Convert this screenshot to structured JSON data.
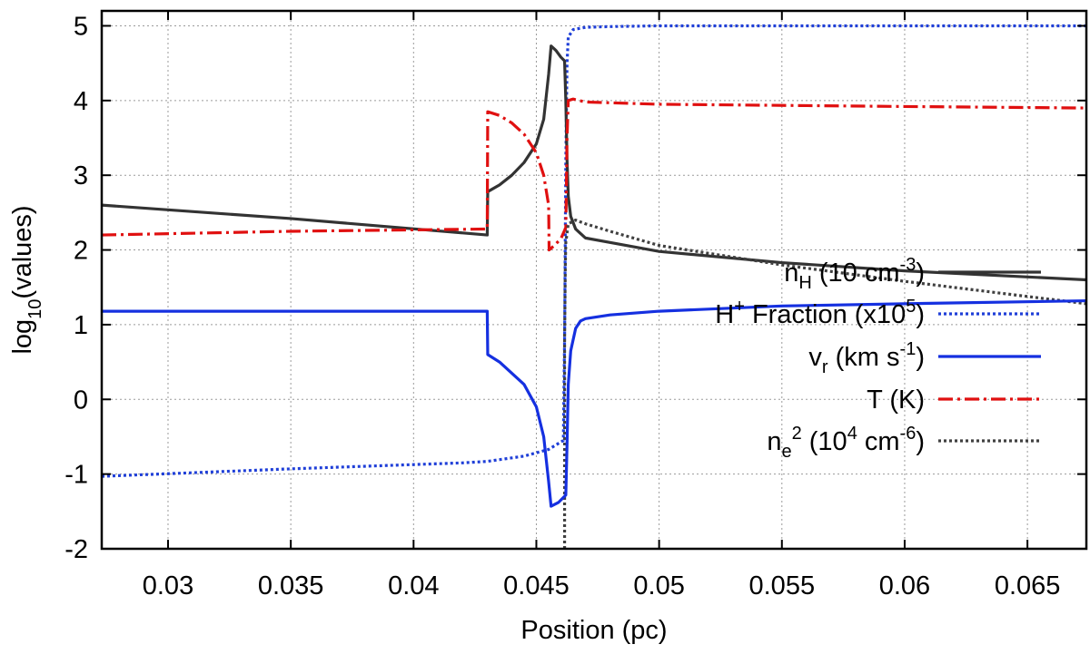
{
  "chart_data": {
    "type": "line",
    "xlabel": "Position (pc)",
    "ylabel": {
      "prefix": "log",
      "sub": "10",
      "suffix": "(values)"
    },
    "xlim": [
      0.0273,
      0.0674
    ],
    "ylim": [
      -2,
      5.2
    ],
    "xticks": [
      0.03,
      0.035,
      0.04,
      0.045,
      0.05,
      0.055,
      0.06,
      0.065
    ],
    "xtick_labels": [
      "0.03",
      "0.035",
      "0.04",
      "0.045",
      "0.05",
      "0.055",
      "0.06",
      "0.065"
    ],
    "yticks": [
      -2,
      -1,
      0,
      1,
      2,
      3,
      4,
      5
    ],
    "ytick_labels": [
      "-2",
      "-1",
      "0",
      "1",
      "2",
      "3",
      "4",
      "5"
    ],
    "grid": true,
    "legend_position": "bottom-right",
    "series": [
      {
        "name": {
          "main": "n",
          "sub": "H",
          "rest": " (10 cm",
          "sup": "-3",
          "end": ")"
        },
        "color": "#333333",
        "style": "solid",
        "x": [
          0.0273,
          0.035,
          0.043,
          0.04302,
          0.0435,
          0.044,
          0.0445,
          0.045,
          0.0453,
          0.0455,
          0.0456,
          0.0458,
          0.046,
          0.04615,
          0.0462,
          0.04625,
          0.0463,
          0.0464,
          0.0466,
          0.047,
          0.048,
          0.05,
          0.055,
          0.06,
          0.0674
        ],
        "y": [
          2.6,
          2.42,
          2.2,
          2.78,
          2.87,
          3.0,
          3.17,
          3.42,
          3.75,
          4.35,
          4.73,
          4.67,
          4.58,
          4.53,
          4.0,
          3.2,
          2.72,
          2.45,
          2.28,
          2.16,
          2.1,
          1.98,
          1.83,
          1.72,
          1.6
        ]
      },
      {
        "name": {
          "main": "H",
          "sup": "+",
          "rest": " Fraction (x10",
          "sup2": "5",
          "end": ")"
        },
        "color": "#1f3fd8",
        "style": "dotted",
        "x": [
          0.0273,
          0.035,
          0.042,
          0.043,
          0.0445,
          0.0455,
          0.0461,
          0.04615,
          0.0462,
          0.04625,
          0.0463,
          0.0465,
          0.047,
          0.048,
          0.05,
          0.06,
          0.0674
        ],
        "y": [
          -1.03,
          -0.93,
          -0.85,
          -0.83,
          -0.76,
          -0.67,
          -0.55,
          0.8,
          3.2,
          4.5,
          4.85,
          4.95,
          4.98,
          4.99,
          5.0,
          5.0,
          5.0
        ]
      },
      {
        "name": {
          "main": "v",
          "sub": "r",
          "rest": " (km s",
          "sup": "-1",
          "end": ")"
        },
        "color": "#1530e0",
        "style": "solid",
        "x": [
          0.0273,
          0.035,
          0.043,
          0.04302,
          0.0435,
          0.044,
          0.0445,
          0.045,
          0.0453,
          0.0455,
          0.0456,
          0.0459,
          0.0462,
          0.04625,
          0.0463,
          0.0464,
          0.0466,
          0.0468,
          0.047,
          0.048,
          0.05,
          0.055,
          0.06,
          0.0674
        ],
        "y": [
          1.18,
          1.18,
          1.18,
          0.6,
          0.5,
          0.35,
          0.2,
          -0.1,
          -0.5,
          -1.1,
          -1.43,
          -1.38,
          -1.28,
          -0.6,
          0.2,
          0.65,
          0.95,
          1.05,
          1.08,
          1.13,
          1.18,
          1.25,
          1.28,
          1.32
        ]
      },
      {
        "name": {
          "main": "T (K)"
        },
        "color": "#e01010",
        "style": "dashdot",
        "x": [
          0.0273,
          0.035,
          0.043,
          0.04302,
          0.0435,
          0.044,
          0.0445,
          0.045,
          0.0453,
          0.0455,
          0.04552,
          0.0457,
          0.046,
          0.0462,
          0.04625,
          0.0463,
          0.0465,
          0.047,
          0.05,
          0.06,
          0.0674
        ],
        "y": [
          2.2,
          2.25,
          2.28,
          3.85,
          3.8,
          3.7,
          3.55,
          3.3,
          3.0,
          2.6,
          2.0,
          2.05,
          2.15,
          2.3,
          3.5,
          4.0,
          4.02,
          3.98,
          3.95,
          3.92,
          3.9
        ]
      },
      {
        "name": {
          "main": "n",
          "sub": "e",
          "sup": "2",
          "rest": " (10",
          "sup2": "4",
          "rest2": " cm",
          "sup3": "-6",
          "end": ")"
        },
        "color": "#404040",
        "style": "dotted",
        "x": [
          0.04615,
          0.04615,
          0.04618,
          0.0462,
          0.0463,
          0.0466,
          0.047,
          0.048,
          0.05,
          0.055,
          0.06,
          0.0674
        ],
        "y": [
          -2.0,
          0.8,
          1.8,
          2.1,
          2.35,
          2.4,
          2.35,
          2.25,
          2.06,
          1.8,
          1.58,
          1.28
        ]
      }
    ]
  }
}
